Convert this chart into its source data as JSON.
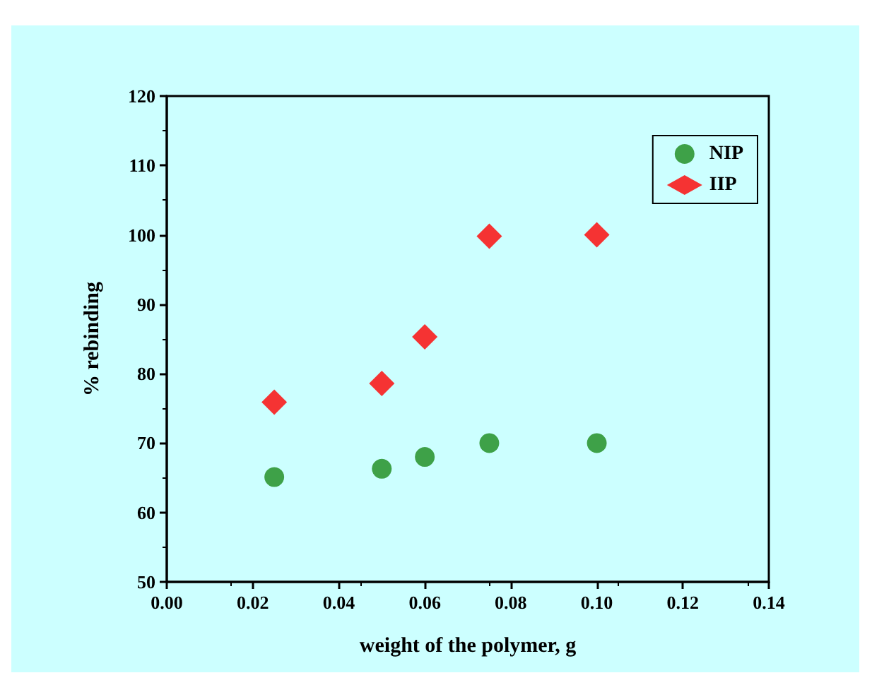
{
  "chart_data": {
    "type": "scatter",
    "xlabel": "weight of the polymer, g",
    "ylabel": "% rebinding",
    "x": [
      0.025,
      0.05,
      0.06,
      0.075,
      0.1
    ],
    "series": [
      {
        "name": "NIP",
        "color": "#1a8a1a",
        "marker": "circle",
        "values": [
          65.1,
          66.3,
          68.0,
          70.0,
          70.0
        ]
      },
      {
        "name": "IIP",
        "color": "#ff0000",
        "marker": "diamond",
        "values": [
          75.9,
          78.6,
          85.3,
          99.8,
          100.0
        ]
      }
    ],
    "xlim": [
      0,
      0.14
    ],
    "xticks": [
      {
        "value": 0,
        "label": "0.00"
      },
      {
        "value": 0.02,
        "label": "0.02"
      },
      {
        "value": 0.04,
        "label": "0.04"
      },
      {
        "value": 0.06,
        "label": "0.06"
      },
      {
        "value": 0.08,
        "label": "0.08"
      },
      {
        "value": 0.1,
        "label": "0.10"
      },
      {
        "value": 0.12,
        "label": "0.12"
      },
      {
        "value": 0.14,
        "label": "0.14"
      }
    ],
    "ylim": [
      50,
      120
    ],
    "yticks": [
      50,
      60,
      70,
      80,
      90,
      100,
      110,
      120
    ],
    "legend": "top right",
    "grid": false
  }
}
